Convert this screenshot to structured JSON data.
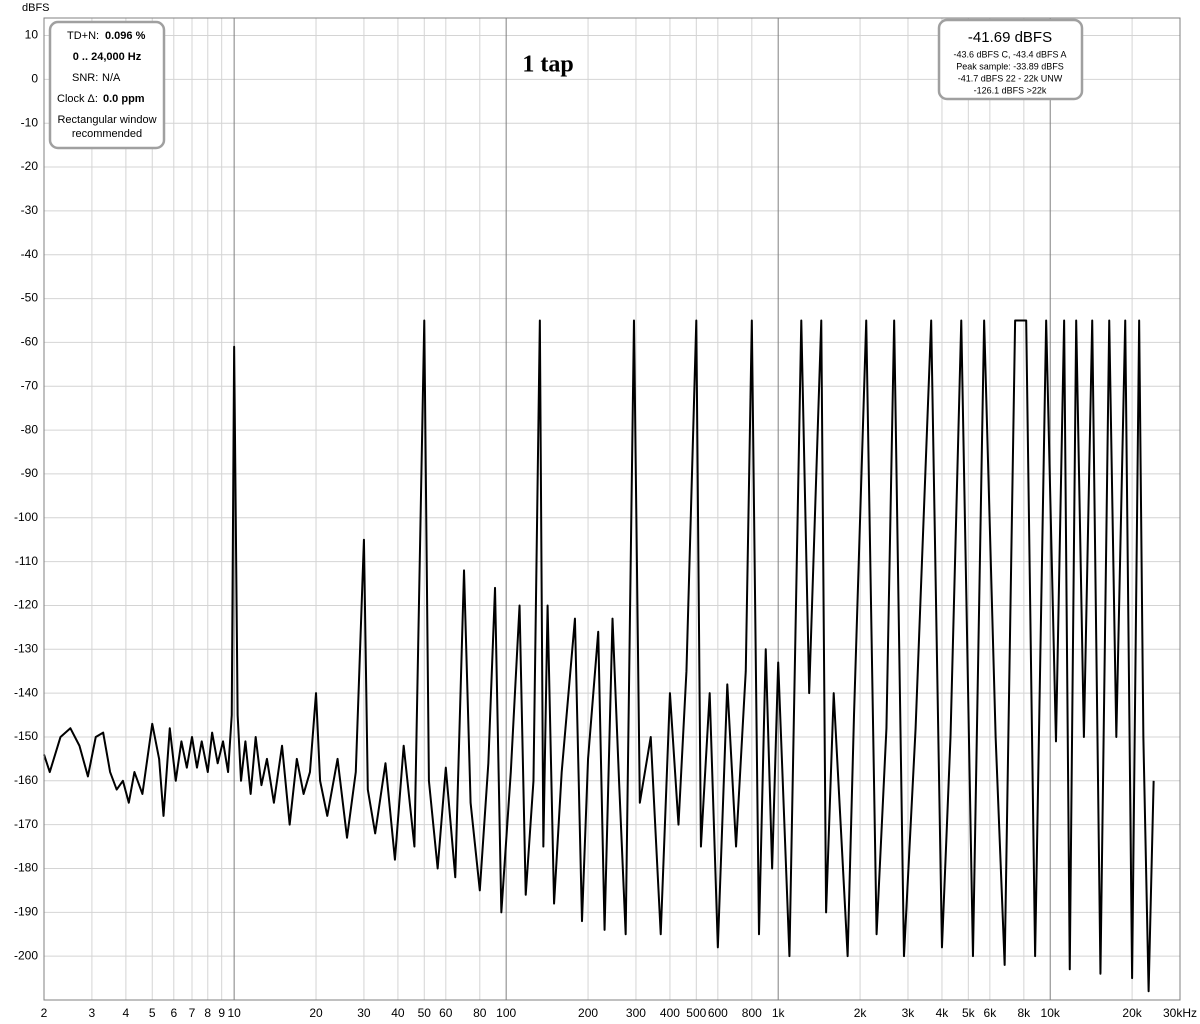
{
  "chart_data": {
    "type": "line",
    "title": "1 tap",
    "ylabel": "dBFS",
    "log_x": true,
    "grid": true,
    "color": "#000000",
    "xlim": [
      2,
      30000
    ],
    "ylim": [
      -210,
      14
    ],
    "xticks": [
      2,
      3,
      4,
      5,
      6,
      7,
      8,
      9,
      10,
      20,
      30,
      40,
      50,
      60,
      80,
      100,
      200,
      300,
      400,
      500,
      600,
      800,
      {
        "value": 1000,
        "label": "1k"
      },
      {
        "value": 2000,
        "label": "2k"
      },
      {
        "value": 3000,
        "label": "3k"
      },
      {
        "value": 4000,
        "label": "4k"
      },
      {
        "value": 5000,
        "label": "5k"
      },
      {
        "value": 6000,
        "label": "6k"
      },
      {
        "value": 8000,
        "label": "8k"
      },
      {
        "value": 10000,
        "label": "10k"
      },
      {
        "value": 20000,
        "label": "20k"
      },
      {
        "value": 30000,
        "label": "30kHz"
      }
    ],
    "yticks": [
      10,
      0,
      -10,
      -20,
      -30,
      -40,
      -50,
      -60,
      -70,
      -80,
      -90,
      -100,
      -110,
      -120,
      -130,
      -140,
      -150,
      -160,
      -170,
      -180,
      -190,
      -200
    ],
    "x": [
      2,
      2.1,
      2.3,
      2.5,
      2.7,
      2.9,
      3.1,
      3.3,
      3.5,
      3.7,
      3.9,
      4.1,
      4.3,
      4.6,
      5.0,
      5.3,
      5.5,
      5.8,
      6.1,
      6.4,
      6.7,
      7.0,
      7.3,
      7.6,
      8.0,
      8.3,
      8.7,
      9.1,
      9.5,
      9.8,
      10,
      10.3,
      10.6,
      11,
      11.5,
      12,
      12.6,
      13.2,
      14,
      15,
      16,
      17,
      18,
      19,
      20,
      20.7,
      22,
      24,
      26,
      28,
      30,
      31,
      33,
      36,
      39,
      42,
      46,
      50,
      52,
      56,
      60,
      65,
      70,
      74,
      80,
      86,
      91,
      96,
      104,
      112,
      118,
      126,
      133,
      137,
      142,
      150,
      160,
      179,
      190,
      200,
      218,
      230,
      246,
      260,
      275,
      295,
      310,
      340,
      370,
      400,
      430,
      460,
      500,
      520,
      560,
      600,
      650,
      700,
      760,
      800,
      850,
      900,
      950,
      1000,
      1100,
      1216,
      1300,
      1440,
      1500,
      1600,
      1800,
      1900,
      2107,
      2300,
      2500,
      2669,
      2900,
      3200,
      3651,
      4000,
      4300,
      4710,
      5200,
      5716,
      6300,
      6800,
      7430,
      8160,
      8800,
      9663,
      10500,
      11250,
      11800,
      12460,
      13300,
      14270,
      15300,
      16480,
      17500,
      18870,
      20000,
      21230,
      22000,
      23000,
      24000
    ],
    "values": [
      -154,
      -158,
      -150,
      -148,
      -152,
      -159,
      -150,
      -149,
      -158,
      -162,
      -160,
      -165,
      -158,
      -163,
      -147,
      -155,
      -168,
      -148,
      -160,
      -151,
      -157,
      -150,
      -157,
      -151,
      -158,
      -149,
      -156,
      -151,
      -158,
      -145,
      -61,
      -145,
      -160,
      -151,
      -163,
      -150,
      -161,
      -155,
      -165,
      -152,
      -170,
      -155,
      -163,
      -158,
      -140,
      -160,
      -168,
      -155,
      -173,
      -158,
      -105,
      -162,
      -172,
      -156,
      -178,
      -152,
      -175,
      -55,
      -160,
      -180,
      -157,
      -182,
      -112,
      -165,
      -185,
      -156,
      -116,
      -190,
      -158,
      -120,
      -186,
      -160,
      -55,
      -175,
      -120,
      -188,
      -158,
      -123,
      -192,
      -155,
      -126,
      -194,
      -123,
      -160,
      -195,
      -55,
      -165,
      -150,
      -195,
      -140,
      -170,
      -135,
      -55,
      -175,
      -140,
      -198,
      -138,
      -175,
      -135,
      -55,
      -195,
      -130,
      -180,
      -133,
      -200,
      -55,
      -140,
      -55,
      -190,
      -140,
      -200,
      -145,
      -55,
      -195,
      -148,
      -55,
      -200,
      -148,
      -55,
      -198,
      -150,
      -55,
      -200,
      -55,
      -150,
      -202,
      -55,
      -55,
      -200,
      -55,
      -151,
      -55,
      -203,
      -55,
      -150,
      -55,
      -204,
      -55,
      -150,
      -55,
      -205,
      -55,
      -150,
      -208,
      -160
    ],
    "annotations": {
      "td_n_label": "TD+N:",
      "td_n_value": "0.096 %",
      "range": "0 .. 24,000 Hz",
      "snr_label": "SNR:",
      "snr_value": "N/A",
      "clock_label": "Clock Δ:",
      "clock_value": "0.0 ppm",
      "window_note": [
        "Rectangular window",
        "recommended"
      ]
    },
    "readout": {
      "level": "-41.69 dBFS",
      "lines": [
        "-43.6 dBFS C, -43.4 dBFS A",
        "Peak sample: -33.89 dBFS",
        "-41.7 dBFS 22 - 22k UNW",
        "-126.1 dBFS >22k"
      ]
    }
  }
}
